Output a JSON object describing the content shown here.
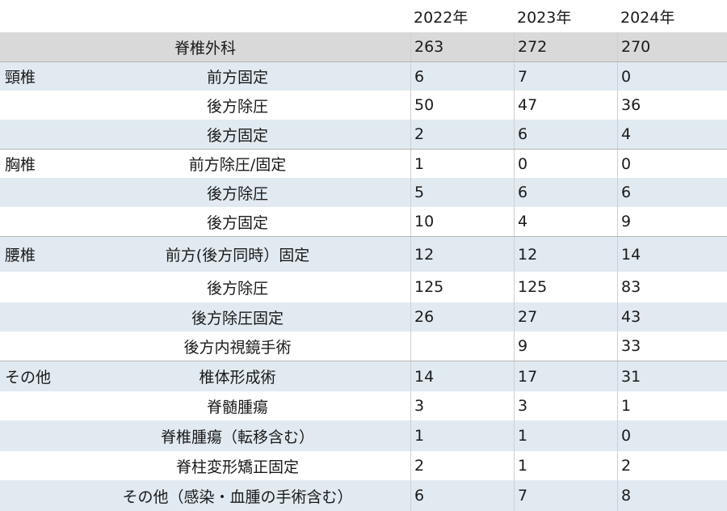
{
  "header": {
    "years": [
      "2022年",
      "2023年",
      "2024年"
    ]
  },
  "total": {
    "label": "脊椎外科",
    "values": [
      "263",
      "272",
      "270"
    ]
  },
  "rows": [
    {
      "region": "頸椎",
      "procedure": "前方固定",
      "values": [
        "6",
        "7",
        "0"
      ]
    },
    {
      "region": "",
      "procedure": "後方除圧",
      "values": [
        "50",
        "47",
        "36"
      ]
    },
    {
      "region": "",
      "procedure": "後方固定",
      "values": [
        "2",
        "6",
        "4"
      ]
    },
    {
      "region": "胸椎",
      "procedure": "前方除圧/固定",
      "values": [
        "1",
        "0",
        "0"
      ]
    },
    {
      "region": "",
      "procedure": "後方除圧",
      "values": [
        "5",
        "6",
        "6"
      ]
    },
    {
      "region": "",
      "procedure": "後方固定",
      "values": [
        "10",
        "4",
        "9"
      ]
    },
    {
      "region": "腰椎",
      "procedure": "前方(後方同時）固定",
      "values": [
        "12",
        "12",
        "14"
      ]
    },
    {
      "region": "",
      "procedure": "後方除圧",
      "values": [
        "125",
        "125",
        "83"
      ]
    },
    {
      "region": "",
      "procedure": "後方除圧固定",
      "values": [
        "26",
        "27",
        "43"
      ]
    },
    {
      "region": "",
      "procedure": "後方内視鏡手術",
      "values": [
        "",
        "9",
        "33"
      ]
    },
    {
      "region": "その他",
      "procedure": "椎体形成術",
      "values": [
        "14",
        "17",
        "31"
      ]
    },
    {
      "region": "",
      "procedure": "脊髄腫瘍",
      "values": [
        "3",
        "3",
        "1"
      ]
    },
    {
      "region": "",
      "procedure": "脊椎腫瘍（転移含む）",
      "values": [
        "1",
        "1",
        "0"
      ]
    },
    {
      "region": "",
      "procedure": "脊柱変形矯正固定",
      "values": [
        "2",
        "1",
        "2"
      ]
    },
    {
      "region": "",
      "procedure": "その他（感染・血腫の手術含む）",
      "values": [
        "6",
        "7",
        "8"
      ]
    }
  ]
}
